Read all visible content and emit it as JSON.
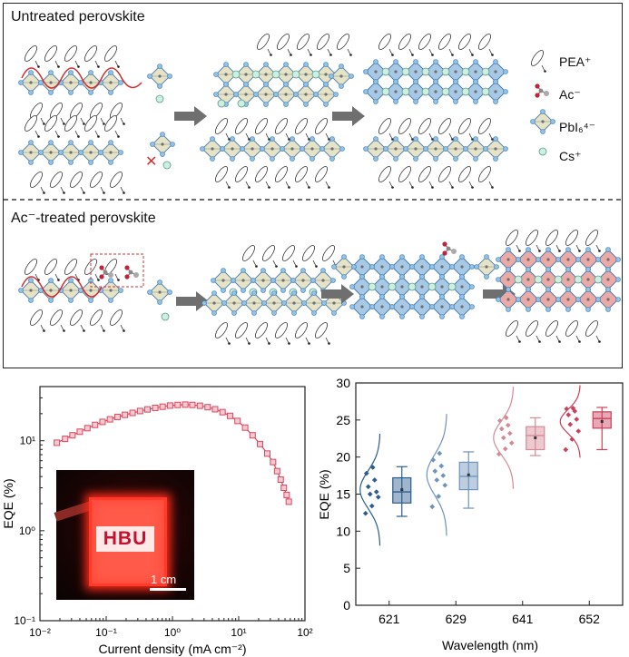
{
  "schematic": {
    "untreated_label": "Untreated perovskite",
    "treated_label": "Ac⁻-treated perovskite",
    "legend": [
      {
        "icon": "pea-molecule-icon",
        "label": "PEA⁺"
      },
      {
        "icon": "acetate-molecule-icon",
        "label": "Ac⁻"
      },
      {
        "icon": "pbi6-octahedron-icon",
        "label": "PbI₆⁴⁻"
      },
      {
        "icon": "cesium-ion-icon",
        "label": "Cs⁺"
      }
    ]
  },
  "photo": {
    "logo": "HBU",
    "scale_label": "1 cm"
  },
  "chart_data": [
    {
      "type": "line",
      "xlabel": "Current density (mA cm⁻²)",
      "ylabel": "EQE (%)",
      "xscale": "log",
      "yscale": "log",
      "xlim": [
        0.01,
        100
      ],
      "ylim": [
        0.1,
        40
      ],
      "xticks": [
        "10⁻²",
        "10⁻¹",
        "10⁰",
        "10¹",
        "10²"
      ],
      "yticks": [
        "10⁻¹",
        "10⁰",
        "10¹"
      ],
      "marker": "square",
      "color": "#d9485f",
      "series": [
        {
          "x": [
            0.018,
            0.024,
            0.031,
            0.04,
            0.052,
            0.068,
            0.088,
            0.114,
            0.148,
            0.192,
            0.25,
            0.325,
            0.42,
            0.55,
            0.71,
            0.92,
            1.2,
            1.56,
            2.0,
            2.6,
            3.4,
            4.4,
            5.7,
            7.4,
            9.6,
            12.5,
            16.2,
            21,
            27,
            33,
            38,
            43,
            48,
            53,
            57
          ],
          "y": [
            9.5,
            10.5,
            11.5,
            12.6,
            13.8,
            15.0,
            16.2,
            17.3,
            18.4,
            19.4,
            20.4,
            21.4,
            22.3,
            23.2,
            23.9,
            24.6,
            25.0,
            25.2,
            25.0,
            24.5,
            23.6,
            22.4,
            20.8,
            18.9,
            16.6,
            14.0,
            11.5,
            9.2,
            7.2,
            5.8,
            4.6,
            3.7,
            3.0,
            2.5,
            2.1
          ]
        }
      ]
    },
    {
      "type": "box",
      "xlabel": "Wavelength (nm)",
      "ylabel": "EQE (%)",
      "ylim": [
        0,
        30
      ],
      "yticks": [
        0,
        5,
        10,
        15,
        20,
        25,
        30
      ],
      "categories": [
        "621",
        "629",
        "641",
        "652"
      ],
      "colors": [
        "#2b5d8f",
        "#6e93bd",
        "#d48a96",
        "#cc3f5a"
      ],
      "boxes": [
        {
          "min": 12.0,
          "q1": 13.8,
          "median": 15.3,
          "mean": 15.6,
          "q3": 17.2,
          "max": 18.7,
          "points": [
            12.4,
            13.4,
            14.6,
            15.0,
            15.3,
            16.0,
            16.9,
            17.8,
            18.6
          ]
        },
        {
          "min": 13.1,
          "q1": 15.6,
          "median": 17.4,
          "mean": 17.6,
          "q3": 19.3,
          "max": 20.7,
          "points": [
            13.3,
            14.7,
            16.2,
            16.9,
            17.5,
            18.1,
            18.8,
            19.6,
            20.5
          ]
        },
        {
          "min": 20.2,
          "q1": 21.0,
          "median": 22.9,
          "mean": 22.6,
          "q3": 24.1,
          "max": 25.3,
          "points": [
            20.4,
            21.1,
            21.9,
            22.6,
            23.2,
            23.8,
            24.3,
            24.9,
            25.3
          ]
        },
        {
          "min": 21.0,
          "q1": 23.9,
          "median": 25.2,
          "mean": 24.8,
          "q3": 26.1,
          "max": 26.7,
          "points": [
            21.0,
            22.4,
            23.5,
            24.4,
            25.1,
            25.7,
            26.2,
            26.5,
            26.6
          ]
        }
      ]
    }
  ]
}
